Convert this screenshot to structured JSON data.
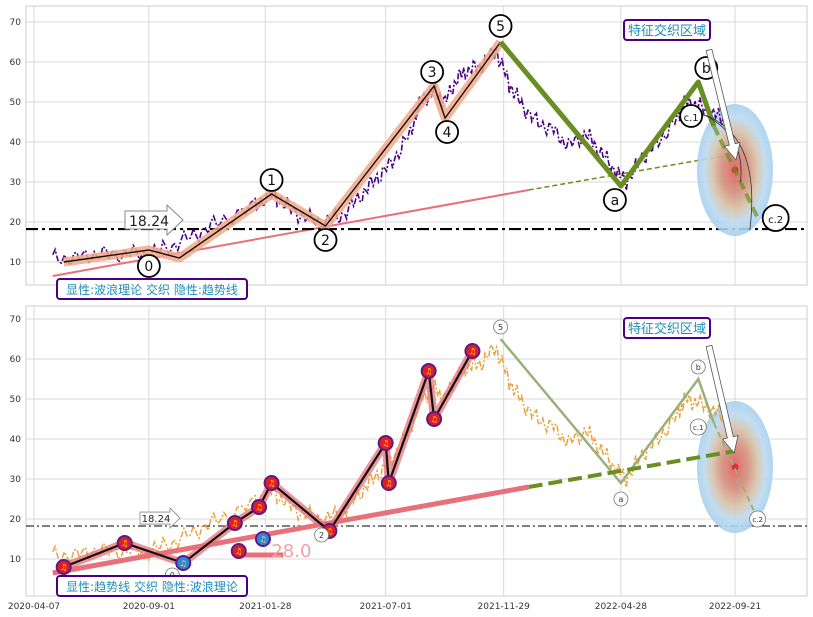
{
  "chart_data": [
    {
      "type": "line",
      "panel": "top",
      "x_dates": [
        "2020-04-07",
        "2020-09-01",
        "2021-01-28",
        "2021-07-01",
        "2021-11-29",
        "2022-04-28",
        "2022-09-21"
      ],
      "yticks": [
        10,
        20,
        30,
        40,
        50,
        60,
        70
      ],
      "ylim": [
        3,
        75
      ],
      "grid": true,
      "support_level": 18.24,
      "support_label": "18.24",
      "zone_label": "特征交织区域",
      "caption": "显性:波浪理论 交织 隐性:趋势线",
      "price_color": "#4b0082",
      "price_series": [
        [
          "2020-05-01",
          11
        ],
        [
          "2020-06-01",
          11
        ],
        [
          "2020-07-01",
          12
        ],
        [
          "2020-08-01",
          12
        ],
        [
          "2020-09-01",
          12
        ],
        [
          "2020-10-01",
          14
        ],
        [
          "2020-11-01",
          17
        ],
        [
          "2020-12-01",
          20
        ],
        [
          "2021-01-15",
          24
        ],
        [
          "2021-02-05",
          27
        ],
        [
          "2021-02-25",
          24
        ],
        [
          "2021-03-20",
          21
        ],
        [
          "2021-04-15",
          20
        ],
        [
          "2021-05-10",
          22
        ],
        [
          "2021-06-01",
          27
        ],
        [
          "2021-06-20",
          31
        ],
        [
          "2021-07-10",
          35
        ],
        [
          "2021-08-01",
          42
        ],
        [
          "2021-08-15",
          50
        ],
        [
          "2021-09-01",
          53
        ],
        [
          "2021-09-15",
          50
        ],
        [
          "2021-10-01",
          56
        ],
        [
          "2021-10-15",
          58
        ],
        [
          "2021-11-01",
          59
        ],
        [
          "2021-11-20",
          63
        ],
        [
          "2021-12-05",
          55
        ],
        [
          "2021-12-20",
          50
        ],
        [
          "2022-01-10",
          45
        ],
        [
          "2022-02-01",
          43
        ],
        [
          "2022-02-20",
          39
        ],
        [
          "2022-03-15",
          42
        ],
        [
          "2022-04-01",
          38
        ],
        [
          "2022-04-20",
          33
        ],
        [
          "2022-05-05",
          30
        ],
        [
          "2022-05-25",
          36
        ],
        [
          "2022-06-15",
          40
        ],
        [
          "2022-07-10",
          46
        ],
        [
          "2022-07-20",
          50
        ],
        [
          "2022-08-05",
          49
        ],
        [
          "2022-08-25",
          47
        ],
        [
          "2022-09-10",
          45
        ]
      ],
      "waves": [
        {
          "label": "0",
          "date": "2020-09-01",
          "value": 6
        },
        {
          "label": "1",
          "date": "2021-02-05",
          "value": 27
        },
        {
          "label": "2",
          "date": "2021-04-15",
          "value": 19
        },
        {
          "label": "3",
          "date": "2021-09-01",
          "value": 54
        },
        {
          "label": "4",
          "date": "2021-09-15",
          "value": 46
        },
        {
          "label": "5",
          "date": "2021-11-25",
          "value": 65
        },
        {
          "label": "a",
          "date": "2022-04-28",
          "value": 29
        },
        {
          "label": "b",
          "date": "2022-08-05",
          "value": 55
        },
        {
          "label": "c.1",
          "date": "2022-08-01",
          "value": 42
        },
        {
          "label": "c.2",
          "date": "2022-10-20",
          "value": 21
        }
      ],
      "trendline": {
        "from": [
          "2020-05-01",
          6.5
        ],
        "to": [
          "2021-12-31",
          28
        ],
        "extension_to": [
          "2022-09-21",
          37
        ]
      }
    },
    {
      "type": "line",
      "panel": "bottom",
      "x_dates": [
        "2020-04-07",
        "2020-09-01",
        "2021-01-28",
        "2021-07-01",
        "2021-11-29",
        "2022-04-28",
        "2022-09-21"
      ],
      "yticks": [
        10,
        20,
        30,
        40,
        50,
        60,
        70
      ],
      "ylim": [
        3,
        75
      ],
      "grid": true,
      "support_level": 18.24,
      "support_label": "18.24",
      "low_label": "28.0",
      "zone_label": "特征交织区域",
      "caption": "显性:趋势线 交织 隐性:波浪理论",
      "price_color": "#e8a33c",
      "note_markers": [
        [
          "2020-05-15",
          8
        ],
        [
          "2020-08-01",
          14
        ],
        [
          "2020-10-15",
          9
        ],
        [
          "2020-12-20",
          19
        ],
        [
          "2020-12-25",
          12
        ],
        [
          "2021-01-20",
          23
        ],
        [
          "2021-01-25",
          15
        ],
        [
          "2021-02-05",
          29
        ],
        [
          "2021-04-20",
          17
        ],
        [
          "2021-07-01",
          39
        ],
        [
          "2021-07-05",
          29
        ],
        [
          "2021-08-25",
          57
        ],
        [
          "2021-09-01",
          45
        ],
        [
          "2021-10-20",
          62
        ]
      ],
      "trendline": {
        "from": [
          "2020-05-01",
          6.5
        ],
        "to": [
          "2021-12-31",
          28
        ],
        "extension_to": [
          "2022-09-21",
          37
        ]
      }
    }
  ]
}
